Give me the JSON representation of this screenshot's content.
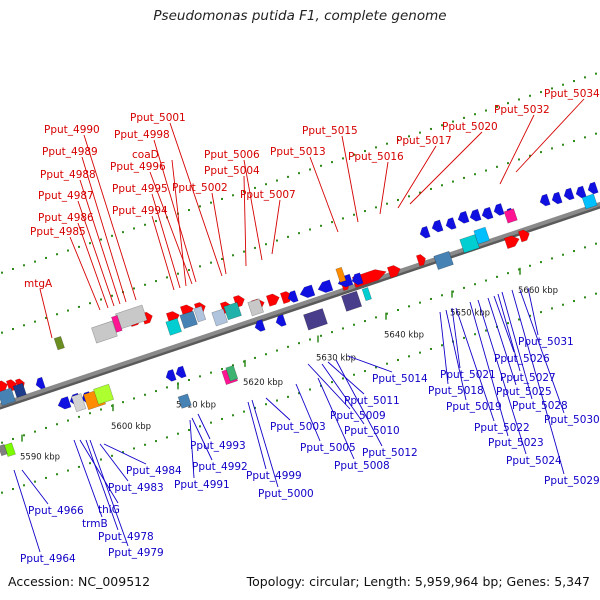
{
  "title": "Pseudomonas putida F1, complete genome",
  "footer": {
    "accession": "Accession: NC_009512",
    "summary": "Topology: circular; Length: 5,959,964 bp; Genes: 5,347"
  },
  "colors": {
    "forward": "#ff0000",
    "reverse": "#1010e0",
    "backbone": "#8a8a8a",
    "tick": "#2e8b1a",
    "label_forward": "#d60000",
    "label_reverse": "#1000c8"
  },
  "ticks": [
    "5590 kbp",
    "5600 kbp",
    "5610 kbp",
    "5620 kbp",
    "5630 kbp",
    "5640 kbp",
    "5650 kbp",
    "5660 kbp"
  ],
  "forward_labels": [
    "mtgA",
    "Pput_4985",
    "Pput_4986",
    "Pput_4987",
    "Pput_4988",
    "Pput_4989",
    "Pput_4990",
    "Pput_4994",
    "Pput_4995",
    "coaD",
    "Pput_4996",
    "Pput_4998",
    "Pput_5001",
    "Pput_5002",
    "Pput_5004",
    "Pput_5006",
    "Pput_5007",
    "Pput_5013",
    "Pput_5015",
    "Pput_5016",
    "Pput_5017",
    "Pput_5020",
    "Pput_5032",
    "Pput_5034"
  ],
  "reverse_labels": [
    "Pput_4964",
    "Pput_4966",
    "trmB",
    "thiG",
    "Pput_4978",
    "Pput_4979",
    "Pput_4983",
    "Pput_4984",
    "Pput_4991",
    "Pput_4992",
    "Pput_4993",
    "Pput_4999",
    "Pput_5000",
    "Pput_5003",
    "Pput_5005",
    "Pput_5008",
    "Pput_5009",
    "Pput_5010",
    "Pput_5011",
    "Pput_5012",
    "Pput_5014",
    "Pput_5018",
    "Pput_5019",
    "Pput_5021",
    "Pput_5022",
    "Pput_5023",
    "Pput_5024",
    "Pput_5025",
    "Pput_5026",
    "Pput_5027",
    "Pput_5028",
    "Pput_5029",
    "Pput_5030",
    "Pput_5031"
  ]
}
